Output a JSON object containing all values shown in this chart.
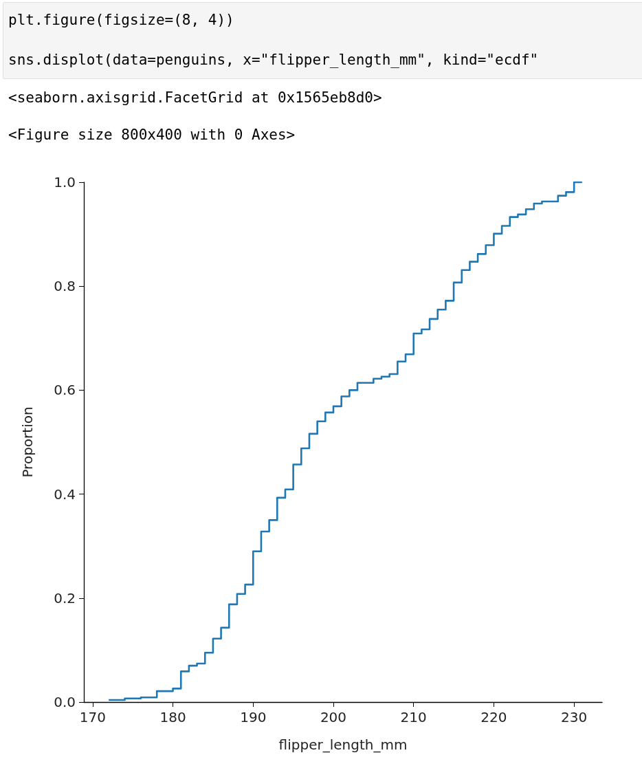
{
  "chart_data": {
    "type": "step",
    "xlabel": "flipper_length_mm",
    "ylabel": "Proportion",
    "annotations": [
      "plt.figure(figsize=(8, 4))",
      "sns.displot(data=penguins, x=\"flipper_length_mm\", kind=\"ecdf\"",
      "<seaborn.axisgrid.FacetGrid at 0x1565eb8d0>",
      "<Figure size 800x400 with 0 Axes>"
    ],
    "x": [
      172,
      174,
      176,
      178,
      180,
      181,
      182,
      183,
      184,
      185,
      186,
      187,
      188,
      189,
      190,
      191,
      192,
      193,
      194,
      195,
      196,
      197,
      198,
      199,
      200,
      201,
      202,
      203,
      205,
      206,
      207,
      208,
      209,
      210,
      211,
      212,
      213,
      214,
      215,
      216,
      217,
      218,
      219,
      220,
      221,
      222,
      223,
      224,
      225,
      226,
      228,
      229,
      230,
      231
    ],
    "series": [
      {
        "color": "#1f77b4",
        "values": [
          0.004,
          0.007,
          0.009,
          0.021,
          0.026,
          0.059,
          0.07,
          0.074,
          0.095,
          0.122,
          0.143,
          0.188,
          0.208,
          0.226,
          0.29,
          0.328,
          0.35,
          0.393,
          0.409,
          0.457,
          0.488,
          0.516,
          0.54,
          0.557,
          0.569,
          0.588,
          0.6,
          0.614,
          0.622,
          0.626,
          0.631,
          0.655,
          0.669,
          0.709,
          0.717,
          0.737,
          0.755,
          0.772,
          0.807,
          0.831,
          0.847,
          0.862,
          0.879,
          0.901,
          0.916,
          0.933,
          0.938,
          0.948,
          0.959,
          0.963,
          0.974,
          0.981,
          1.0,
          1.0
        ]
      }
    ],
    "xlim": [
      168.9,
      233.5
    ],
    "ylim": [
      0,
      1
    ],
    "xticks": [
      170,
      180,
      190,
      200,
      210,
      220,
      230
    ],
    "yticks": [
      {
        "value": 0,
        "label": "0.0"
      },
      {
        "value": 0.2,
        "label": "0.2"
      },
      {
        "value": 0.4,
        "label": "0.4"
      },
      {
        "value": 0.6,
        "label": "0.6"
      },
      {
        "value": 0.8,
        "label": "0.8"
      },
      {
        "value": 1,
        "label": "1.0"
      }
    ],
    "grid": false,
    "marker": "none",
    "line_style": "solid"
  }
}
